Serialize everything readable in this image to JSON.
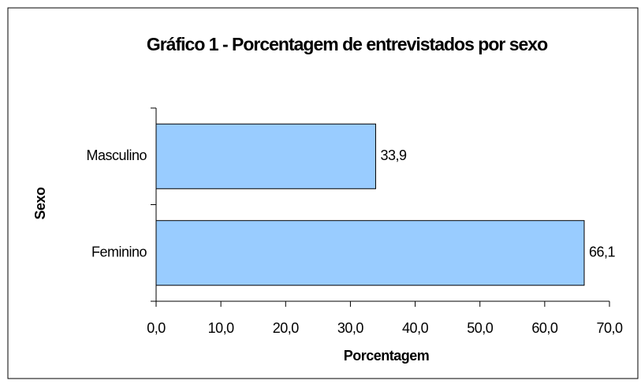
{
  "chart_data": {
    "type": "bar",
    "orientation": "horizontal",
    "title": "Gráfico 1 - Porcentagem de entrevistados por sexo",
    "x_label": "Porcentagem",
    "y_label": "Sexo",
    "categories": [
      "Masculino",
      "Feminino"
    ],
    "values": [
      33.9,
      66.1
    ],
    "value_labels": [
      "33,9",
      "66,1"
    ],
    "color": "#99ccff",
    "xlim": [
      0,
      70
    ],
    "xticks": [
      {
        "value": 0,
        "label": "0,0"
      },
      {
        "value": 10,
        "label": "10,0"
      },
      {
        "value": 20,
        "label": "20,0"
      },
      {
        "value": 30,
        "label": "30,0"
      },
      {
        "value": 40,
        "label": "40,0"
      },
      {
        "value": 50,
        "label": "50,0"
      },
      {
        "value": 60,
        "label": "60,0"
      },
      {
        "value": 70,
        "label": "70,0"
      }
    ],
    "grid": false
  }
}
